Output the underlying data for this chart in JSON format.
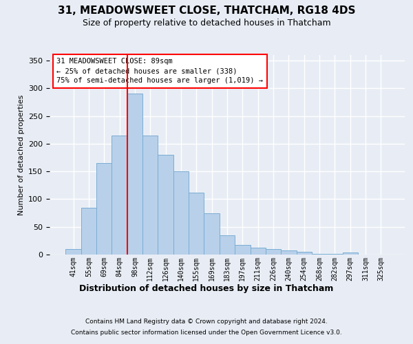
{
  "title": "31, MEADOWSWEET CLOSE, THATCHAM, RG18 4DS",
  "subtitle": "Size of property relative to detached houses in Thatcham",
  "xlabel_bottom": "Distribution of detached houses by size in Thatcham",
  "ylabel": "Number of detached properties",
  "categories": [
    "41sqm",
    "55sqm",
    "69sqm",
    "84sqm",
    "98sqm",
    "112sqm",
    "126sqm",
    "140sqm",
    "155sqm",
    "169sqm",
    "183sqm",
    "197sqm",
    "211sqm",
    "226sqm",
    "240sqm",
    "254sqm",
    "268sqm",
    "282sqm",
    "297sqm",
    "311sqm",
    "325sqm"
  ],
  "bar_values": [
    10,
    85,
    165,
    215,
    290,
    215,
    180,
    150,
    112,
    75,
    35,
    17,
    13,
    10,
    7,
    5,
    1,
    1,
    4,
    0,
    0
  ],
  "bar_color": "#b8d0ea",
  "bar_edge_color": "#7aadd4",
  "red_line_index": 3.5,
  "annotation_line1": "31 MEADOWSWEET CLOSE: 89sqm",
  "annotation_line2": "← 25% of detached houses are smaller (338)",
  "annotation_line3": "75% of semi-detached houses are larger (1,019) →",
  "ylim_max": 360,
  "yticks": [
    0,
    50,
    100,
    150,
    200,
    250,
    300,
    350
  ],
  "footer1": "Contains HM Land Registry data © Crown copyright and database right 2024.",
  "footer2": "Contains public sector information licensed under the Open Government Licence v3.0.",
  "bg_color": "#e8edf5",
  "grid_color": "#ffffff"
}
